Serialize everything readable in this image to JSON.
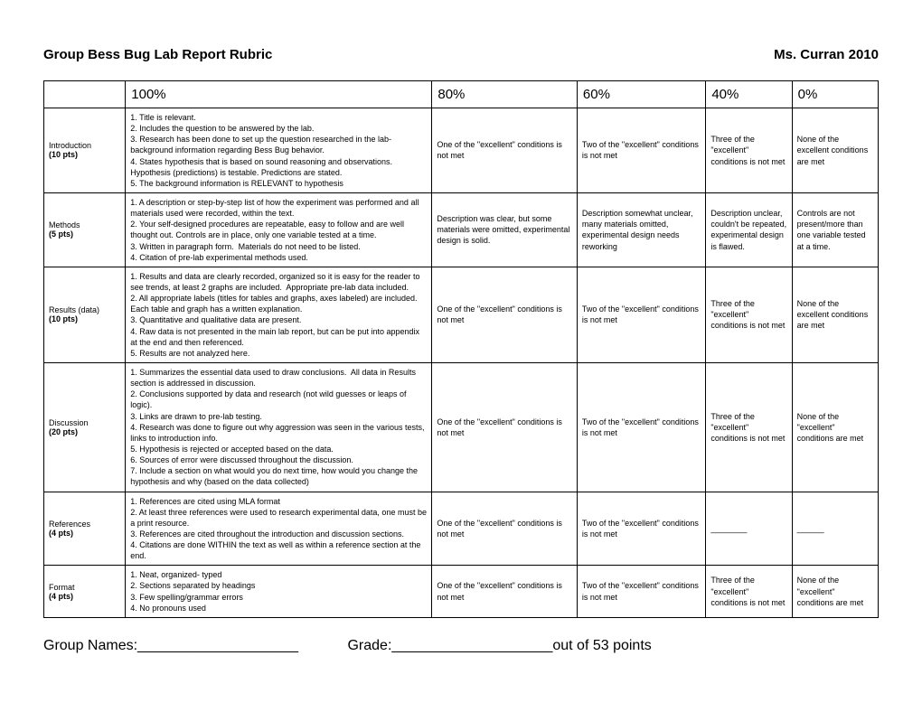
{
  "header": {
    "title": "Group Bess Bug Lab Report Rubric",
    "right": "Ms. Curran 2010"
  },
  "columns": [
    "",
    "100%",
    "80%",
    "60%",
    "40%",
    "0%"
  ],
  "rows": [
    {
      "category": "Introduction",
      "points": "(10 pts)",
      "criteria": "1. Title is relevant.\n2. Includes the question to be answered by the lab.\n3. Research has been done to set up the question researched in the lab- background information regarding Bess Bug behavior.\n4. States hypothesis that is based on sound reasoning and observations. Hypothesis (predictions) is testable. Predictions are stated.\n5. The background information is RELEVANT to hypothesis",
      "c80": "One of the \"excellent\" conditions is not met",
      "c60": "Two of the \"excellent\" conditions is not met",
      "c40": "Three of the \"excellent\" conditions is not met",
      "c0": "None of the excellent conditions are met"
    },
    {
      "category": "Methods",
      "points": "(5 pts)",
      "criteria": "1. A description or step-by-step list of how the experiment was performed and all materials used were recorded, within the text.\n2. Your self-designed procedures are repeatable, easy to follow and are well thought out. Controls are in place, only one variable tested at a time.\n3. Written in paragraph form.  Materials do not need to be listed.\n4. Citation of pre-lab experimental methods used.",
      "c80": "Description was clear, but some materials were omitted, experimental design is solid.",
      "c60": "Description somewhat unclear, many materials omitted, experimental design needs reworking",
      "c40": "Description unclear, couldn't be repeated, experimental design is flawed.",
      "c0": "Controls are not present/more than one variable tested at a time."
    },
    {
      "category": "Results (data)",
      "points": "(10 pts)",
      "criteria": "1. Results and data are clearly recorded, organized so it is easy for the reader to see trends, at least 2 graphs are included.  Appropriate pre-lab data included.\n2. All appropriate labels (titles for tables and graphs, axes labeled) are included.  Each table and graph has a written explanation.\n3. Quantitative and qualitative data are present.\n4. Raw data is not presented in the main lab report, but can be put into appendix at the end and then referenced.\n5. Results are not analyzed here.",
      "c80": "One of the \"excellent\" conditions is not met",
      "c60": "Two of the \"excellent\" conditions is not met",
      "c40": "Three of the \"excellent\" conditions is not met",
      "c0": "None of the excellent conditions are met"
    },
    {
      "category": "Discussion",
      "points": "(20 pts)",
      "criteria": "1. Summarizes the essential data used to draw conclusions.  All data in Results section is addressed in discussion.\n2. Conclusions supported by data and research (not wild guesses or leaps of logic).\n3. Links are drawn to pre-lab testing.\n4. Research was done to figure out why aggression was seen in the various tests, links to introduction info.\n5. Hypothesis is rejected or accepted based on the data.\n6. Sources of error were discussed throughout the discussion.\n7. Include a section on what would you do next time, how would you change the hypothesis and why (based on the data collected)",
      "c80": "One of the \"excellent\" conditions is not met",
      "c60": "Two of the \"excellent\" conditions is not met",
      "c40": "Three of the \"excellent\" conditions is not met",
      "c0": "None of the \"excellent\" conditions are met"
    },
    {
      "category": "References",
      "points": "(4 pts)",
      "criteria": "1. References are cited using MLA format\n2. At least three references were used to research experimental data, one must be a print resource.\n3. References are cited throughout the introduction and discussion sections.\n4. Citations are done WITHIN the text as well as within a reference section at the end.",
      "c80": "One of the \"excellent\" conditions is not met",
      "c60": "Two of the \"excellent\" conditions is not met",
      "c40": "________",
      "c0": "______"
    },
    {
      "category": "Format",
      "points": "(4 pts)",
      "criteria": "1. Neat, organized- typed\n2. Sections separated by headings\n3. Few spelling/grammar errors\n4. No pronouns used",
      "c80": "One of the \"excellent\" conditions is not met",
      "c60": "Two of the \"excellent\" conditions is not met",
      "c40": "Three of the \"excellent\" conditions is not met",
      "c0": "None of the \"excellent\" conditions are met"
    }
  ],
  "footer": {
    "names_label": "Group Names:____________________",
    "grade_label": "Grade:____________________out of 53 points"
  }
}
